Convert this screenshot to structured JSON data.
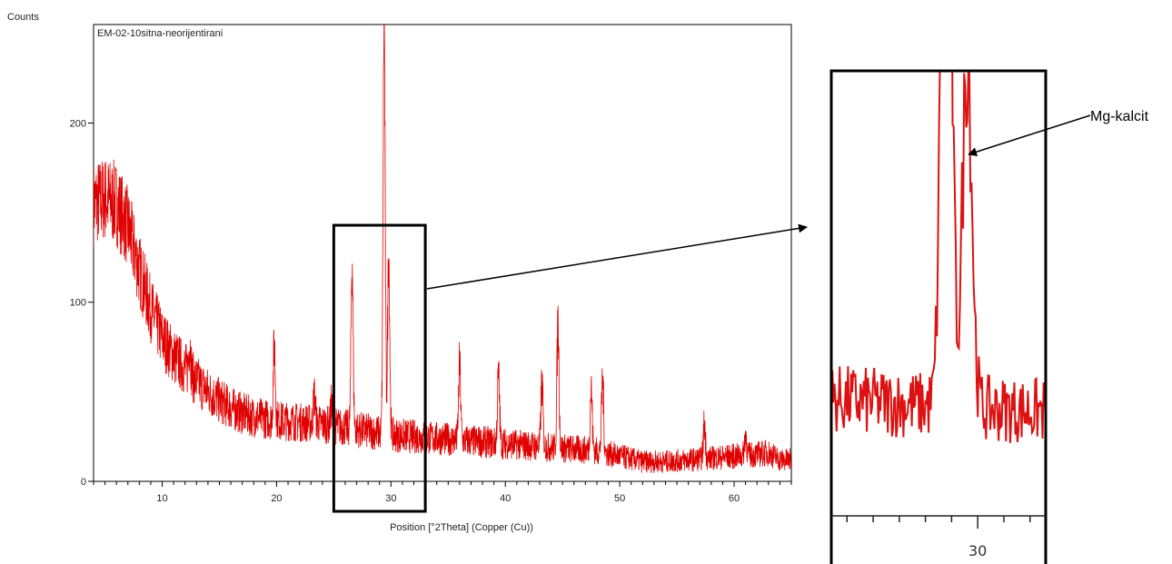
{
  "chart_data": {
    "type": "line",
    "ylabel": "Counts",
    "xlabel": "Position [°2Theta] (Copper (Cu))",
    "sample_name": "EM-02-10sitna-neorijentirani",
    "xlim": [
      4,
      65
    ],
    "ylim": [
      0,
      255
    ],
    "x_ticks": [
      10,
      20,
      30,
      40,
      50,
      60
    ],
    "x_minor_step": 1,
    "y_ticks": [
      0,
      100,
      200
    ],
    "line_color": "#e00000",
    "background": [
      [
        4,
        155
      ],
      [
        5,
        158
      ],
      [
        6,
        155
      ],
      [
        7,
        142
      ],
      [
        8,
        118
      ],
      [
        9,
        96
      ],
      [
        10,
        80
      ],
      [
        11,
        70
      ],
      [
        12,
        63
      ],
      [
        13,
        56
      ],
      [
        14,
        50
      ],
      [
        15,
        45
      ],
      [
        16,
        41
      ],
      [
        17,
        38
      ],
      [
        18,
        36
      ],
      [
        19,
        35
      ],
      [
        20,
        34
      ],
      [
        22,
        33
      ],
      [
        24,
        32
      ],
      [
        26,
        30
      ],
      [
        28,
        28
      ],
      [
        30,
        26
      ],
      [
        32,
        25
      ],
      [
        34,
        24
      ],
      [
        36,
        23
      ],
      [
        38,
        22
      ],
      [
        40,
        21
      ],
      [
        42,
        20
      ],
      [
        44,
        19
      ],
      [
        46,
        18
      ],
      [
        48,
        17
      ],
      [
        50,
        14
      ],
      [
        52,
        11
      ],
      [
        54,
        11
      ],
      [
        56,
        12
      ],
      [
        58,
        13
      ],
      [
        60,
        14
      ],
      [
        62,
        15
      ],
      [
        63,
        16
      ],
      [
        64,
        12
      ],
      [
        65,
        12
      ]
    ],
    "peaks": [
      {
        "x": 12.4,
        "height": 78
      },
      {
        "x": 19.8,
        "height": 76
      },
      {
        "x": 23.3,
        "height": 48
      },
      {
        "x": 24.8,
        "height": 42
      },
      {
        "x": 26.6,
        "height": 124
      },
      {
        "x": 29.4,
        "height": 255
      },
      {
        "x": 29.8,
        "height": 130
      },
      {
        "x": 36.0,
        "height": 64
      },
      {
        "x": 39.4,
        "height": 59
      },
      {
        "x": 43.2,
        "height": 55
      },
      {
        "x": 44.6,
        "height": 88
      },
      {
        "x": 47.5,
        "height": 52
      },
      {
        "x": 48.5,
        "height": 57
      },
      {
        "x": 57.4,
        "height": 32
      },
      {
        "x": 61.0,
        "height": 27
      }
    ],
    "callout": {
      "label": "Mg-kalcit",
      "zoom_x_range": [
        25,
        33
      ],
      "zoom_tick": 30
    }
  }
}
